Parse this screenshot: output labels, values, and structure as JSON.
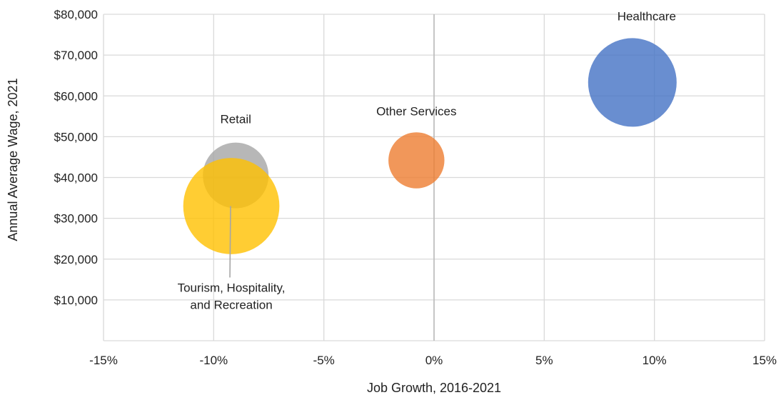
{
  "chart_data": {
    "type": "scatter",
    "title": "",
    "xlabel": "Job Growth, 2016-2021",
    "ylabel": "Annual Average Wage, 2021",
    "xlim": [
      -0.15,
      0.15
    ],
    "ylim": [
      0,
      80000
    ],
    "x_ticks": [
      {
        "value": -0.15,
        "label": "-15%"
      },
      {
        "value": -0.1,
        "label": "-10%"
      },
      {
        "value": -0.05,
        "label": "-5%"
      },
      {
        "value": 0.0,
        "label": "0%"
      },
      {
        "value": 0.05,
        "label": "5%"
      },
      {
        "value": 0.1,
        "label": "10%"
      },
      {
        "value": 0.15,
        "label": "15%"
      }
    ],
    "y_ticks": [
      {
        "value": 10000,
        "label": "$10,000"
      },
      {
        "value": 20000,
        "label": "$20,000"
      },
      {
        "value": 30000,
        "label": "$30,000"
      },
      {
        "value": 40000,
        "label": "$40,000"
      },
      {
        "value": 50000,
        "label": "$50,000"
      },
      {
        "value": 60000,
        "label": "$60,000"
      },
      {
        "value": 70000,
        "label": "$70,000"
      },
      {
        "value": 80000,
        "label": "$80,000"
      }
    ],
    "grid": true,
    "legend": "none",
    "series": [
      {
        "name": "Healthcare",
        "label_lines": [
          "Healthcare"
        ],
        "x": 0.09,
        "y": 63300,
        "size": 1.0,
        "color": "#4472C4"
      },
      {
        "name": "Other Services",
        "label_lines": [
          "Other Services"
        ],
        "x": -0.008,
        "y": 44200,
        "size": 0.4,
        "color": "#ED7D31"
      },
      {
        "name": "Retail",
        "label_lines": [
          "Retail"
        ],
        "x": -0.09,
        "y": 40500,
        "size": 0.55,
        "color": "#A5A5A5"
      },
      {
        "name": "Tourism, Hospitality, and Recreation",
        "label_lines": [
          "Tourism, Hospitality,",
          "and Recreation"
        ],
        "x": -0.092,
        "y": 33000,
        "size": 1.18,
        "color": "#FFC000"
      }
    ]
  }
}
